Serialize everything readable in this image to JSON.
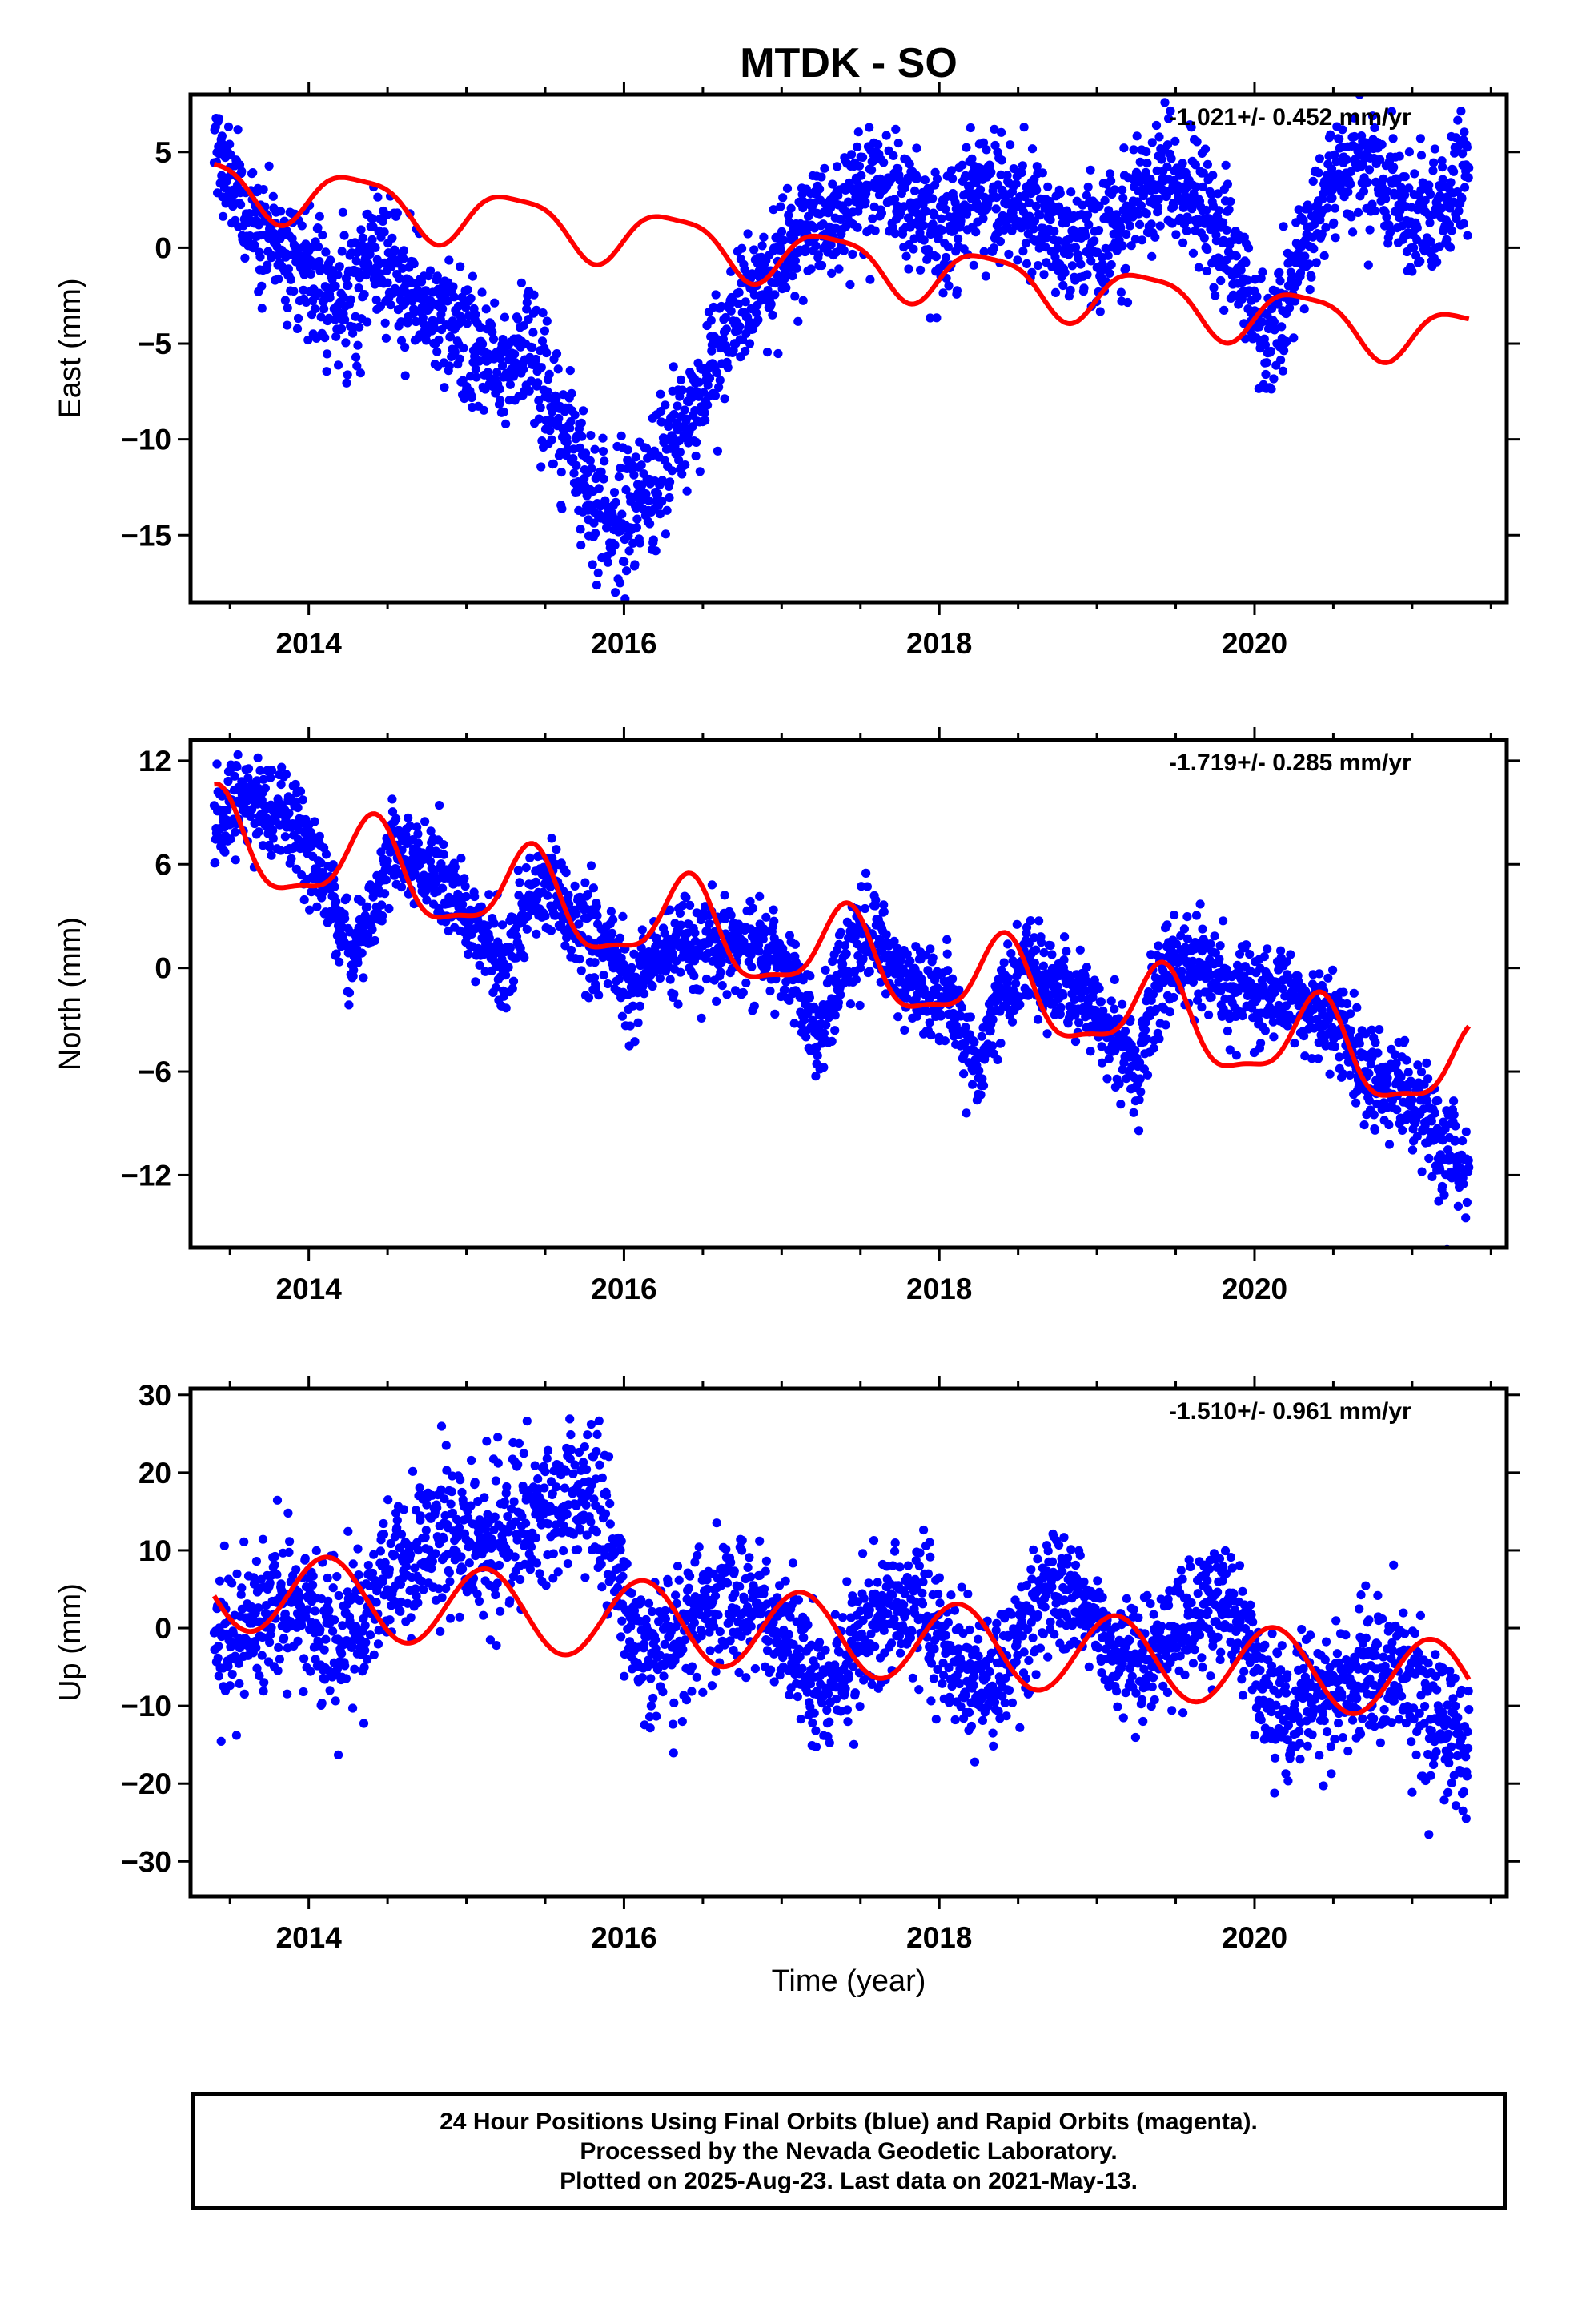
{
  "title": "MTDK - SO",
  "xlabel": "Time (year)",
  "footer": {
    "line1": "24 Hour Positions Using Final Orbits (blue) and Rapid Orbits (magenta).",
    "line2": "Processed by the Nevada Geodetic Laboratory.",
    "line3": "Plotted on 2025-Aug-23. Last data on 2021-May-13."
  },
  "colors": {
    "final_orbits": "#0000ff",
    "model_fit": "#ff0000",
    "frame": "#000000"
  },
  "chart_data": [
    {
      "type": "scatter",
      "title": "MTDK - SO",
      "xlabel": "",
      "ylabel": "East (mm)",
      "rate_label": "-1.021+/- 0.452 mm/yr",
      "xlim": [
        2013.25,
        2021.6
      ],
      "ylim": [
        -18.5,
        8
      ],
      "xticks": [
        "2014",
        "2016",
        "2018",
        "2020"
      ],
      "yticks": [
        5,
        0,
        -5,
        -10,
        -15
      ],
      "ytick_labels": [
        "5",
        "0",
        "−5",
        "−10",
        "−15"
      ],
      "series": [
        {
          "kind": "points",
          "x": [
            2013.4,
            2013.5,
            2013.6,
            2013.8,
            2014.0,
            2014.2,
            2014.4,
            2014.6,
            2014.8,
            2015.0,
            2015.2,
            2015.4,
            2015.5,
            2015.7,
            2015.9,
            2016.0,
            2016.2,
            2016.4,
            2016.6,
            2016.8,
            2017.0,
            2017.2,
            2017.4,
            2017.6,
            2017.8,
            2018.0,
            2018.2,
            2018.4,
            2018.6,
            2018.8,
            2019.0,
            2019.2,
            2019.4,
            2019.6,
            2019.8,
            2020.0,
            2020.1,
            2020.3,
            2020.5,
            2020.7,
            2020.9,
            2021.1,
            2021.3,
            2021.36
          ],
          "y": [
            5.5,
            3.5,
            1.5,
            0.5,
            -1.0,
            -3.0,
            -0.5,
            -2.0,
            -3.5,
            -5.0,
            -6.0,
            -5.0,
            -7.5,
            -11.0,
            -14.0,
            -14.5,
            -12.0,
            -9.0,
            -5.5,
            -2.5,
            -0.5,
            1.0,
            2.5,
            4.0,
            2.5,
            1.0,
            2.0,
            3.0,
            2.0,
            0.5,
            0.0,
            2.0,
            3.5,
            3.0,
            0.5,
            -3.5,
            -5.0,
            0.0,
            3.5,
            4.5,
            2.5,
            1.5,
            3.5,
            5.5
          ],
          "y_spread": [
            1.6,
            1.5,
            1.5,
            1.5,
            1.6,
            1.7,
            1.6,
            1.6,
            1.6,
            1.7,
            1.7,
            1.7,
            1.8,
            1.8,
            1.8,
            1.8,
            1.8,
            1.7,
            1.7,
            1.6,
            1.6,
            1.6,
            1.6,
            1.6,
            1.6,
            1.6,
            1.6,
            1.6,
            1.6,
            1.6,
            1.6,
            1.6,
            1.6,
            1.6,
            1.6,
            1.7,
            1.7,
            1.6,
            1.6,
            1.6,
            1.7,
            1.7,
            1.7,
            1.7
          ]
        },
        {
          "kind": "model",
          "slope": -1.021,
          "y0": -0.66,
          "t0": 2017.35,
          "annual_cos": -0.54,
          "annual_sin": 1.33,
          "semi_cos": 0.2,
          "semi_sin": 0.3
        }
      ]
    },
    {
      "type": "scatter",
      "xlabel": "",
      "ylabel": "North (mm)",
      "rate_label": "-1.719+/- 0.285 mm/yr",
      "xlim": [
        2013.25,
        2021.6
      ],
      "ylim": [
        -16.2,
        13.2
      ],
      "xticks": [
        "2014",
        "2016",
        "2018",
        "2020"
      ],
      "yticks": [
        12,
        6,
        0,
        -6,
        -12
      ],
      "ytick_labels": [
        "12",
        "6",
        "0",
        "−6",
        "−12"
      ],
      "series": [
        {
          "kind": "points",
          "x": [
            2013.4,
            2013.5,
            2013.7,
            2013.9,
            2014.0,
            2014.15,
            2014.25,
            2014.4,
            2014.55,
            2014.7,
            2014.9,
            2015.05,
            2015.25,
            2015.4,
            2015.55,
            2015.7,
            2015.9,
            2016.05,
            2016.25,
            2016.4,
            2016.55,
            2016.7,
            2016.9,
            2017.05,
            2017.25,
            2017.4,
            2017.55,
            2017.7,
            2017.9,
            2018.05,
            2018.25,
            2018.4,
            2018.55,
            2018.7,
            2018.9,
            2019.05,
            2019.25,
            2019.4,
            2019.55,
            2019.7,
            2019.9,
            2020.05,
            2020.2,
            2020.4,
            2020.55,
            2020.7,
            2020.9,
            2021.05,
            2021.2,
            2021.36
          ],
          "y": [
            7.5,
            10.0,
            9.5,
            8.5,
            7.0,
            4.0,
            0.5,
            3.5,
            7.0,
            6.0,
            4.5,
            2.5,
            0.0,
            4.0,
            4.5,
            2.5,
            1.0,
            -1.0,
            0.5,
            1.5,
            1.5,
            1.5,
            1.0,
            0.0,
            -4.0,
            0.5,
            2.0,
            0.0,
            -1.5,
            -2.0,
            -6.0,
            -1.5,
            0.5,
            -1.0,
            -1.5,
            -3.0,
            -6.0,
            -0.5,
            0.5,
            -0.5,
            -1.5,
            -1.5,
            -1.5,
            -2.5,
            -3.5,
            -6.0,
            -7.0,
            -8.0,
            -11.0,
            -12.0
          ],
          "y_spread": [
            1.5,
            1.5,
            1.5,
            1.5,
            1.4,
            1.3,
            1.3,
            1.3,
            1.3,
            1.3,
            1.3,
            1.3,
            1.3,
            1.3,
            1.3,
            1.3,
            1.3,
            1.3,
            1.3,
            1.3,
            1.3,
            1.3,
            1.3,
            1.3,
            1.3,
            1.3,
            1.3,
            1.3,
            1.3,
            1.3,
            1.3,
            1.3,
            1.3,
            1.3,
            1.3,
            1.3,
            1.3,
            1.3,
            1.3,
            1.3,
            1.3,
            1.3,
            1.3,
            1.3,
            1.4,
            1.4,
            1.4,
            1.5,
            1.5,
            1.6
          ]
        },
        {
          "kind": "model",
          "slope": -1.719,
          "y0": 0.6,
          "t0": 2017.35,
          "annual_cos": -2.1,
          "annual_sin": 1.4,
          "semi_cos": 0.5,
          "semi_sin": -0.6
        }
      ]
    },
    {
      "type": "scatter",
      "xlabel": "Time (year)",
      "ylabel": "Up (mm)",
      "rate_label": "-1.510+/- 0.961 mm/yr",
      "xlim": [
        2013.25,
        2021.6
      ],
      "ylim": [
        -34.5,
        30.8
      ],
      "xticks": [
        "2014",
        "2016",
        "2018",
        "2020"
      ],
      "yticks": [
        30,
        20,
        10,
        0,
        -10,
        -20,
        -30
      ],
      "ytick_labels": [
        "30",
        "20",
        "10",
        "0",
        "−10",
        "−20",
        "−30"
      ],
      "series": [
        {
          "kind": "points",
          "x": [
            2013.4,
            2013.6,
            2013.8,
            2014.0,
            2014.2,
            2014.4,
            2014.6,
            2014.8,
            2015.0,
            2015.2,
            2015.4,
            2015.6,
            2015.8,
            2016.0,
            2016.1,
            2016.3,
            2016.5,
            2016.7,
            2016.9,
            2017.1,
            2017.3,
            2017.5,
            2017.7,
            2017.9,
            2018.1,
            2018.3,
            2018.5,
            2018.7,
            2018.9,
            2019.1,
            2019.3,
            2019.5,
            2019.7,
            2019.9,
            2020.05,
            2020.2,
            2020.4,
            2020.6,
            2020.8,
            2021.0,
            2021.2,
            2021.36
          ],
          "y": [
            -3.0,
            0.0,
            3.0,
            2.0,
            -2.0,
            3.0,
            8.0,
            12.0,
            12.0,
            10.0,
            14.0,
            17.0,
            17.0,
            5.0,
            -3.0,
            -2.0,
            3.0,
            4.0,
            2.0,
            -3.0,
            -8.0,
            -2.0,
            3.0,
            4.0,
            -5.0,
            -8.0,
            -2.0,
            5.0,
            3.0,
            -2.0,
            -4.0,
            0.0,
            3.0,
            2.0,
            -8.0,
            -12.0,
            -8.0,
            -6.0,
            -5.0,
            -8.0,
            -12.0,
            -16.0
          ],
          "y_spread": [
            4.5,
            4.5,
            4.5,
            4.5,
            4.5,
            4.5,
            5.0,
            5.0,
            5.0,
            5.0,
            5.0,
            4.5,
            4.5,
            4.5,
            4.5,
            4.5,
            4.0,
            4.0,
            4.0,
            4.0,
            4.0,
            4.0,
            4.0,
            4.0,
            4.0,
            4.0,
            4.0,
            4.0,
            4.0,
            4.0,
            4.0,
            4.0,
            4.0,
            4.0,
            4.5,
            4.5,
            4.5,
            4.5,
            4.5,
            4.5,
            4.5,
            4.5
          ]
        },
        {
          "kind": "model",
          "slope": -1.51,
          "y0": -0.9,
          "t0": 2017.35,
          "annual_cos": 3.73,
          "annual_sin": 3.56,
          "semi_cos": 0.0,
          "semi_sin": 0.0
        }
      ]
    }
  ]
}
